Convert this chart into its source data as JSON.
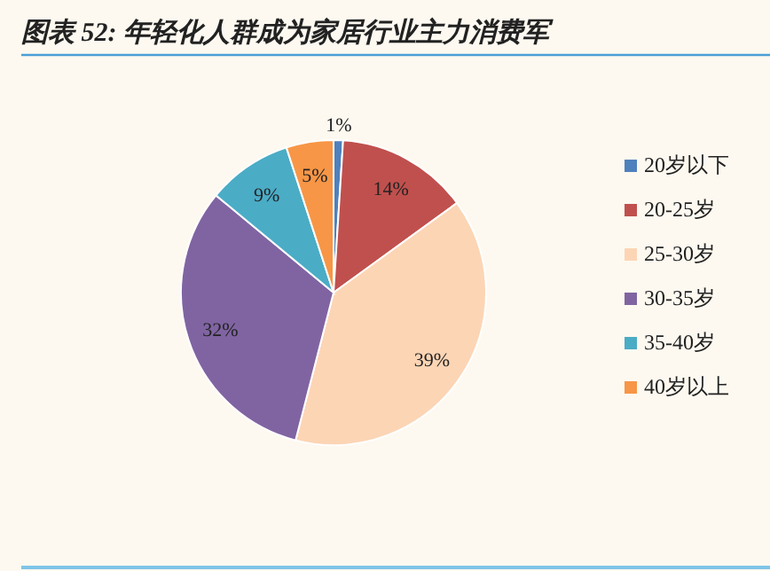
{
  "chart_data": {
    "type": "pie",
    "title": "图表 52: 年轻化人群成为家居行业主力消费军",
    "categories": [
      "20岁以下",
      "20-25岁",
      "25-30岁",
      "30-35岁",
      "35-40岁",
      "40岁以上"
    ],
    "values": [
      1,
      14,
      39,
      32,
      9,
      5
    ],
    "colors": [
      "#4f81bd",
      "#c0504d",
      "#fcd5b5",
      "#8064a2",
      "#4bacc6",
      "#f79646"
    ],
    "value_labels": [
      "1%",
      "14%",
      "39%",
      "32%",
      "9%",
      "5%"
    ],
    "legend": "right"
  }
}
